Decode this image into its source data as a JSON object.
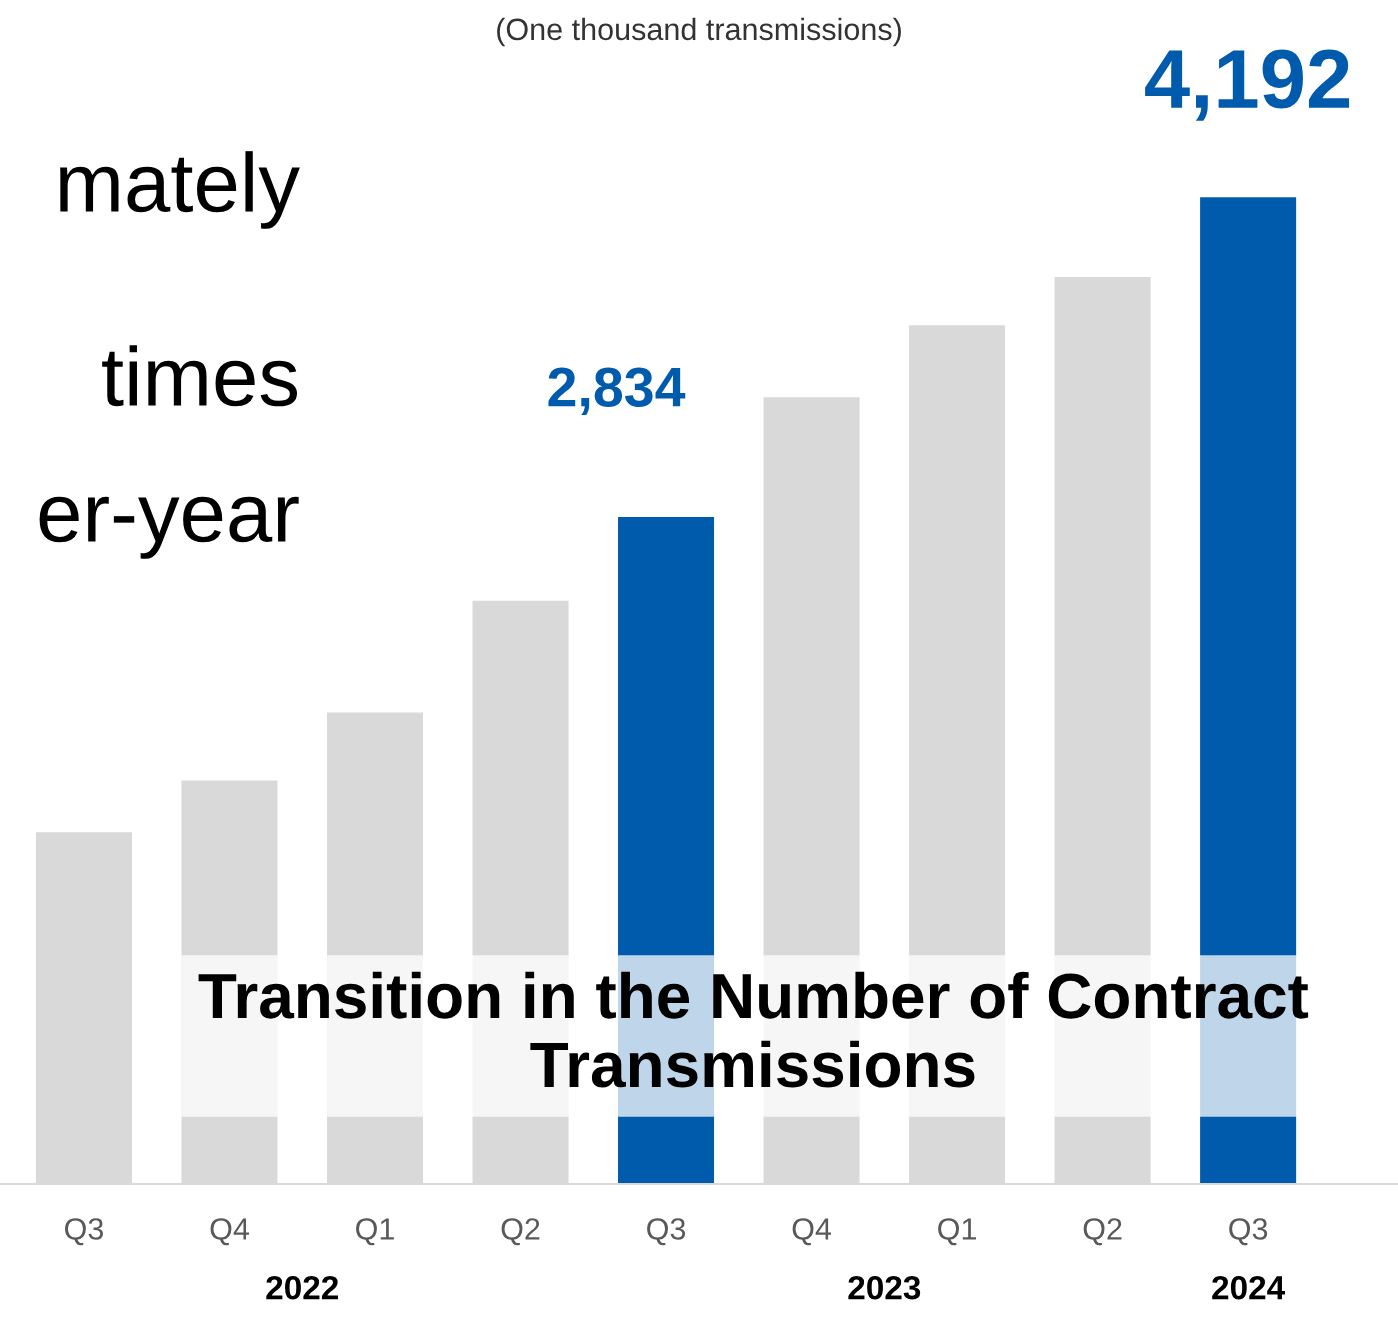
{
  "chart_data": {
    "type": "bar",
    "title": "Transition in the Number of Contract Transmissions",
    "subtitle": "(One thousand transmissions)",
    "categories": [
      "Q3",
      "Q4",
      "Q1",
      "Q2",
      "Q3",
      "Q4",
      "Q1",
      "Q2",
      "Q3"
    ],
    "values": [
      1494,
      1714,
      2003,
      2478,
      2834,
      3343,
      3649,
      3853,
      4192
    ],
    "colors": [
      "#d9d9d9",
      "#d9d9d9",
      "#d9d9d9",
      "#d9d9d9",
      "#005bac",
      "#d9d9d9",
      "#d9d9d9",
      "#d9d9d9",
      "#005bac"
    ],
    "value_labels": [
      null,
      null,
      null,
      null,
      "2,834",
      null,
      null,
      null,
      "4,192"
    ],
    "annotations": [
      "2022",
      "2023",
      "2024",
      "mately",
      "times",
      "er-year"
    ],
    "grid": false,
    "legend": false
  }
}
